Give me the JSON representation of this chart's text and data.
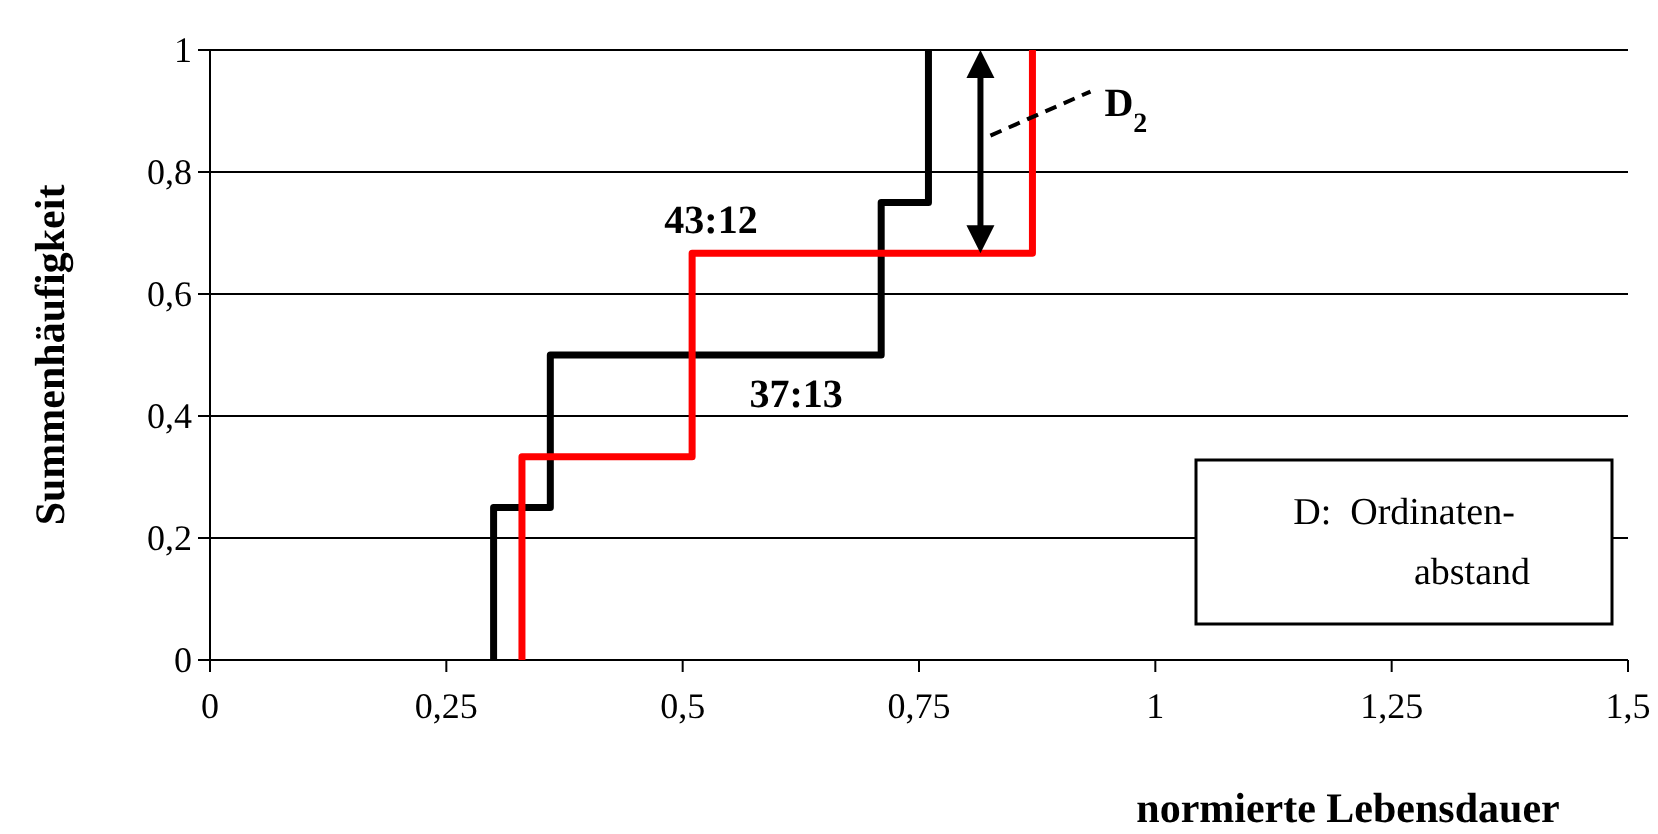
{
  "chart_data": {
    "type": "step",
    "xlabel": "normierte Lebensdauer",
    "ylabel": "Summenhäufigkeit",
    "xlim": [
      0,
      1.5
    ],
    "ylim": [
      0,
      1
    ],
    "xticks": [
      0,
      {
        "value": 0.25,
        "label": "0,25"
      },
      {
        "value": 0.5,
        "label": "0,5"
      },
      {
        "value": 0.75,
        "label": "0,75"
      },
      1,
      {
        "value": 1.25,
        "label": "1,25"
      },
      {
        "value": 1.5,
        "label": "1,5"
      }
    ],
    "yticks": [
      0,
      {
        "value": 0.2,
        "label": "0,2"
      },
      {
        "value": 0.4,
        "label": "0,4"
      },
      {
        "value": 0.6,
        "label": "0,6"
      },
      {
        "value": 0.8,
        "label": "0,8"
      },
      1
    ],
    "grid": "y",
    "series": [
      {
        "color": "#000000",
        "x": [
          0.3,
          0.3,
          0.36,
          0.71,
          0.76
        ],
        "values": [
          0,
          0.25,
          0.5,
          0.75,
          1
        ]
      },
      {
        "color": "#ff0000",
        "x": [
          0.33,
          0.33,
          0.51,
          0.87,
          0.87
        ],
        "values": [
          0,
          0.333,
          0.667,
          0.667,
          1
        ]
      }
    ],
    "annotations": [
      {
        "text": "43:12",
        "x": 0.53,
        "y": 0.667
      },
      {
        "text": "37:13",
        "x": 0.62,
        "y": 0.5
      },
      "D$_{2}$",
      "D:  Ordinaten-abstand"
    ]
  }
}
